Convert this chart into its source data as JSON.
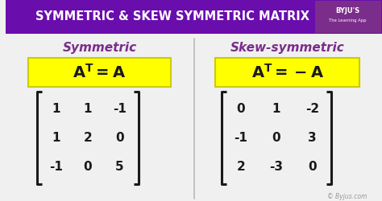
{
  "title": "SYMMETRIC & SKEW SYMMETRIC MATRIX",
  "title_bg": "#6a0dad",
  "title_color": "#ffffff",
  "bg_color": "#f0f0f0",
  "left_label": "Symmetric",
  "right_label": "Skew-symmetric",
  "label_color": "#7B2D8B",
  "formula_bg": "#ffff00",
  "formula_border": "#cccc00",
  "formula_color": "#1a1a1a",
  "sym_matrix": [
    [
      1,
      1,
      -1
    ],
    [
      1,
      2,
      0
    ],
    [
      -1,
      0,
      5
    ]
  ],
  "skew_matrix": [
    [
      0,
      1,
      -2
    ],
    [
      -1,
      0,
      3
    ],
    [
      2,
      -3,
      0
    ]
  ],
  "matrix_color": "#1a1a1a",
  "divider_color": "#bbbbbb",
  "watermark": "© Byjus.com",
  "byju_color": "#999999",
  "byju_bg": "#7B2D8B"
}
